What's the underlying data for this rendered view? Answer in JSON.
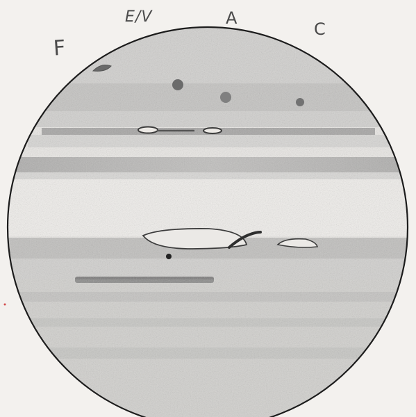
{
  "labels": {
    "f": "F",
    "ev": "E/V",
    "a": "A",
    "c": "C"
  },
  "colors": {
    "paper": "#f3f1ee",
    "pencil_dark": "#222222",
    "pencil_mid": "#8a8a8a",
    "pencil_light": "#c9c9c9"
  }
}
